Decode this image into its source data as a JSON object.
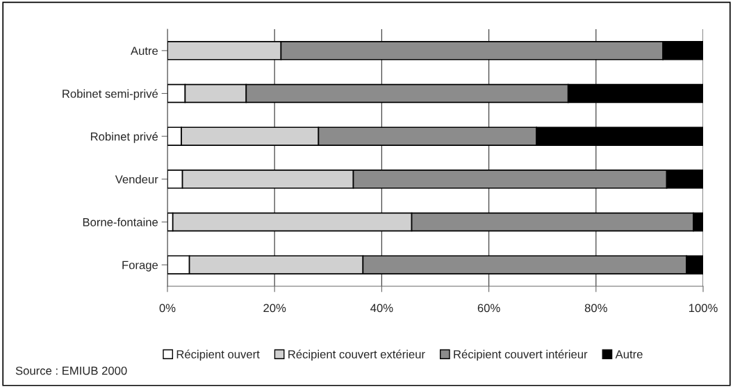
{
  "chart_data": {
    "type": "bar",
    "orientation": "horizontal",
    "stacked": true,
    "categories": [
      "Autre",
      "Robinet semi-privé",
      "Robinet privé",
      "Vendeur",
      "Borne-fontaine",
      "Forage"
    ],
    "series": [
      {
        "name": "Récipient ouvert",
        "color": "#ffffff",
        "values": [
          0,
          3.3,
          2.6,
          2.8,
          1.0,
          4.1
        ]
      },
      {
        "name": "Récipient couvert extérieur",
        "color": "#d0d0d0",
        "values": [
          21.2,
          11.4,
          25.6,
          31.9,
          44.6,
          32.4
        ]
      },
      {
        "name": "Récipient couvert intérieur",
        "color": "#8c8c8c",
        "values": [
          71.3,
          60.1,
          40.7,
          58.5,
          52.6,
          60.4
        ]
      },
      {
        "name": "Autre",
        "color": "#000000",
        "values": [
          7.5,
          25.2,
          31.1,
          6.8,
          1.8,
          3.1
        ]
      }
    ],
    "xlim": [
      0,
      100
    ],
    "xticks": [
      {
        "value": 0,
        "label": "0%"
      },
      {
        "value": 20,
        "label": "20%"
      },
      {
        "value": 40,
        "label": "40%"
      },
      {
        "value": 60,
        "label": "60%"
      },
      {
        "value": 80,
        "label": "80%"
      },
      {
        "value": 100,
        "label": "100%"
      }
    ],
    "grid": "x",
    "legend": "bottom",
    "annotations": [
      "Source : EMIUB 2000"
    ]
  }
}
